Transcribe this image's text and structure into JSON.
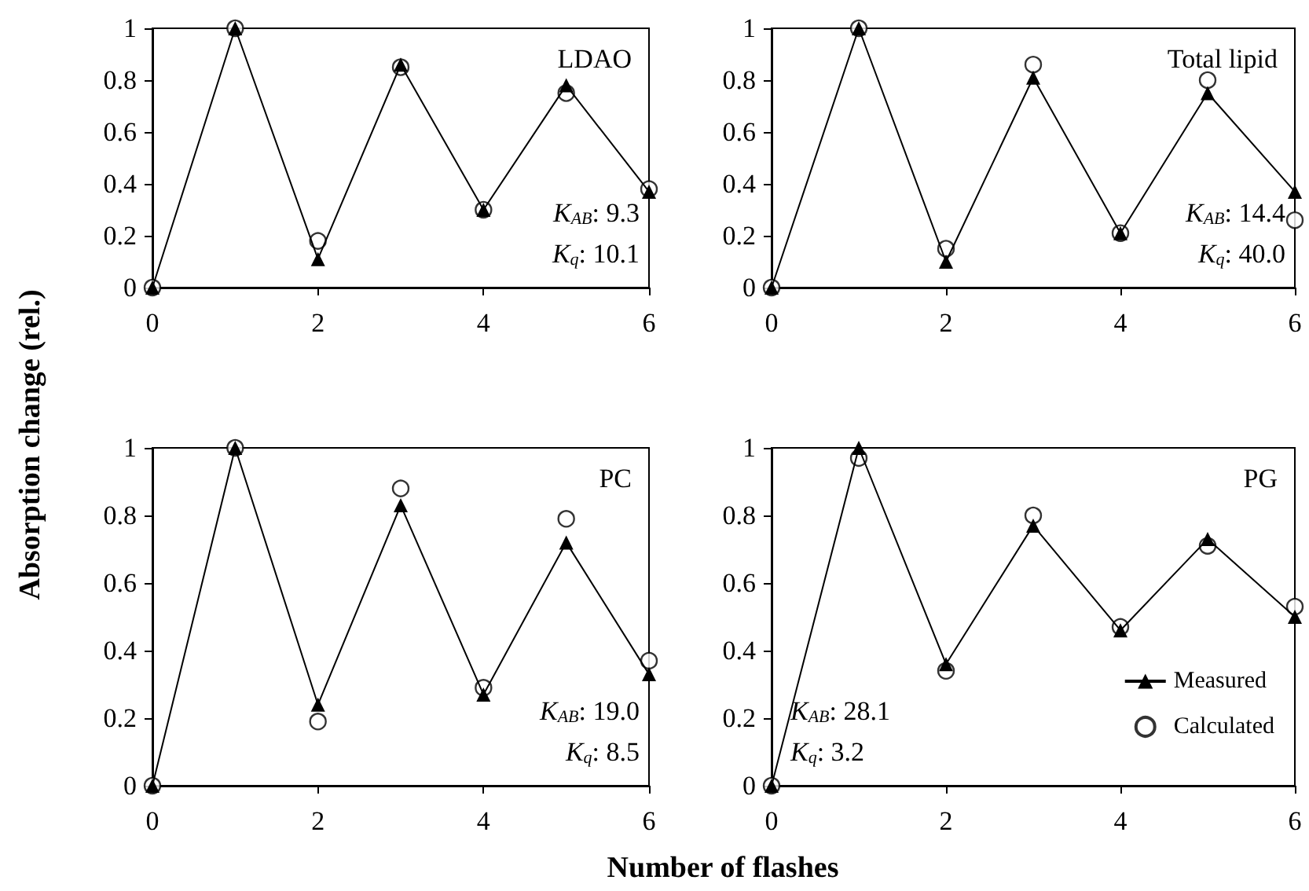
{
  "chart_data": [
    {
      "type": "line",
      "title": "LDAO",
      "ylabel": "Absorption change (rel.)",
      "x": [
        0,
        1,
        2,
        3,
        4,
        5,
        6
      ],
      "xlim": [
        0,
        6
      ],
      "xticks": [
        0,
        2,
        4,
        6
      ],
      "ylim": [
        0,
        1
      ],
      "yticks": [
        0,
        0.2,
        0.4,
        0.6,
        0.8,
        1
      ],
      "grid": false,
      "legend": false,
      "series": [
        {
          "color": "#000000",
          "marker": "triangle",
          "values": [
            0,
            1,
            0.11,
            0.86,
            0.3,
            0.78,
            0.37
          ]
        },
        {
          "type": "scatter",
          "color": "#000000",
          "marker": "circle",
          "values": [
            0,
            1,
            0.18,
            0.85,
            0.3,
            0.75,
            0.38
          ]
        }
      ],
      "annotations": [
        "K$_{AB}$: 9.3",
        "K$_{q}$: 10.1"
      ]
    },
    {
      "type": "line",
      "title": "Total lipid",
      "x": [
        0,
        1,
        2,
        3,
        4,
        5,
        6
      ],
      "xlim": [
        0,
        6
      ],
      "xticks": [
        0,
        2,
        4,
        6
      ],
      "ylim": [
        0,
        1
      ],
      "yticks": [
        0,
        0.2,
        0.4,
        0.6,
        0.8,
        1
      ],
      "grid": false,
      "legend": false,
      "series": [
        {
          "color": "#000000",
          "marker": "triangle",
          "values": [
            0,
            1,
            0.1,
            0.81,
            0.21,
            0.75,
            0.37
          ]
        },
        {
          "type": "scatter",
          "color": "#000000",
          "marker": "circle",
          "values": [
            0,
            1,
            0.15,
            0.86,
            0.21,
            0.8,
            0.26
          ]
        }
      ],
      "annotations": [
        "K$_{AB}$: 14.4",
        "K$_{q}$: 40.0"
      ]
    },
    {
      "type": "line",
      "title": "PC",
      "xlabel": "Number of flashes",
      "x": [
        0,
        1,
        2,
        3,
        4,
        5,
        6
      ],
      "xlim": [
        0,
        6
      ],
      "xticks": [
        0,
        2,
        4,
        6
      ],
      "ylim": [
        0,
        1
      ],
      "yticks": [
        0,
        0.2,
        0.4,
        0.6,
        0.8,
        1
      ],
      "grid": false,
      "legend": false,
      "series": [
        {
          "color": "#000000",
          "marker": "triangle",
          "values": [
            0,
            1,
            0.24,
            0.83,
            0.27,
            0.72,
            0.33
          ]
        },
        {
          "type": "scatter",
          "color": "#000000",
          "marker": "circle",
          "values": [
            0,
            1,
            0.19,
            0.88,
            0.29,
            0.79,
            0.37
          ]
        }
      ],
      "annotations": [
        "K$_{AB}$: 19.0",
        "K$_{q}$: 8.5"
      ]
    },
    {
      "type": "line",
      "title": "PG",
      "x": [
        0,
        1,
        2,
        3,
        4,
        5,
        6
      ],
      "xlim": [
        0,
        6
      ],
      "xticks": [
        0,
        2,
        4,
        6
      ],
      "ylim": [
        0,
        1
      ],
      "yticks": [
        0,
        0.2,
        0.4,
        0.6,
        0.8,
        1
      ],
      "grid": false,
      "legend": "bottom right",
      "series": [
        {
          "name": "Measured",
          "color": "#000000",
          "marker": "triangle",
          "values": [
            0,
            1,
            0.36,
            0.77,
            0.46,
            0.73,
            0.5
          ]
        },
        {
          "type": "scatter",
          "name": "Calculated",
          "color": "#000000",
          "marker": "circle",
          "values": [
            0,
            0.97,
            0.34,
            0.8,
            0.47,
            0.71,
            0.53
          ]
        }
      ],
      "annotations": [
        "K$_{AB}$: 28.1",
        "K$_{q}$: 3.2"
      ]
    }
  ]
}
